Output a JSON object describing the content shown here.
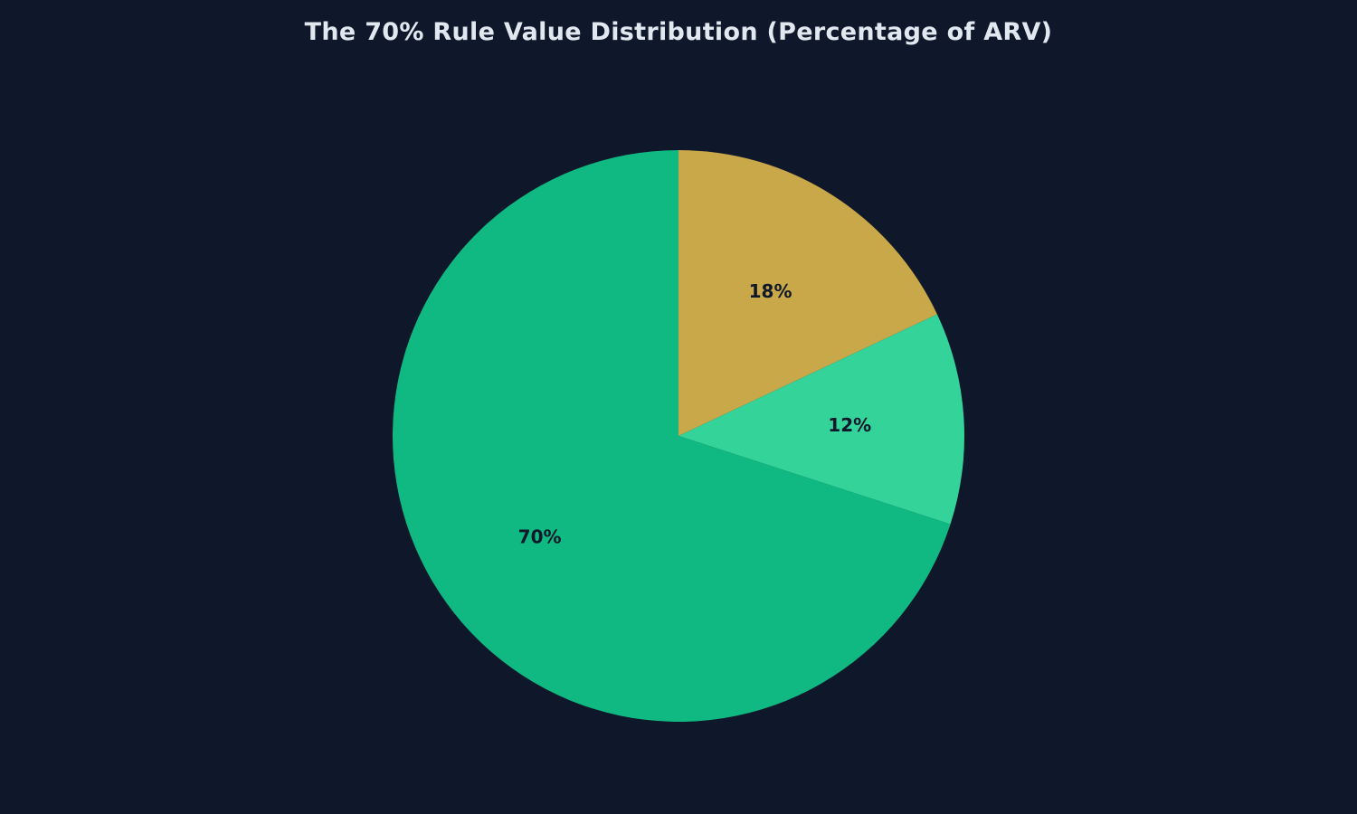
{
  "chart_data": {
    "type": "pie",
    "title": "The 70% Rule Value Distribution (Percentage of ARV)",
    "slices": [
      {
        "value": 18,
        "label": "18%",
        "color": "#c9a84a"
      },
      {
        "value": 12,
        "label": "12%",
        "color": "#34d399"
      },
      {
        "value": 70,
        "label": "70%",
        "color": "#10b981"
      }
    ],
    "start_angle_deg": 90,
    "direction": "clockwise",
    "legend": "none"
  },
  "colors": {
    "background": "#0f172a",
    "title": "#e2e8f0",
    "label": "#0f172a"
  }
}
